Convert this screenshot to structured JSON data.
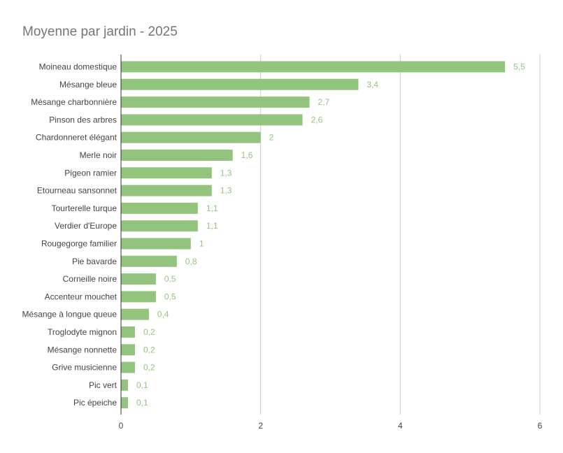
{
  "chart_data": {
    "type": "bar",
    "orientation": "horizontal",
    "title": "Moyenne par jardin - 2025",
    "xlabel": "",
    "ylabel": "",
    "categories": [
      "Moineau domestique",
      "Mésange bleue",
      "Mésange charbonnière",
      "Pinson des arbres",
      "Chardonneret élégant",
      "Merle noir",
      "Pigeon ramier",
      "Etourneau sansonnet",
      "Tourterelle turque",
      "Verdier d'Europe",
      "Rougegorge familier",
      "Pie bavarde",
      "Corneille noire",
      "Accenteur mouchet",
      "Mésange à longue queue",
      "Troglodyte mignon",
      "Mésange nonnette",
      "Grive musicienne",
      "Pic vert",
      "Pic épeiche"
    ],
    "values": [
      5.5,
      3.4,
      2.7,
      2.6,
      2,
      1.6,
      1.3,
      1.3,
      1.1,
      1.1,
      1,
      0.8,
      0.5,
      0.5,
      0.4,
      0.2,
      0.2,
      0.2,
      0.1,
      0.1
    ],
    "value_labels": [
      "5,5",
      "3,4",
      "2,7",
      "2,6",
      "2",
      "1,6",
      "1,3",
      "1,3",
      "1,1",
      "1,1",
      "1",
      "0,8",
      "0,5",
      "0,5",
      "0,4",
      "0,2",
      "0,2",
      "0,2",
      "0,1",
      "0,1"
    ],
    "xlim": [
      0,
      6
    ],
    "xticks": [
      0,
      2,
      4,
      6
    ],
    "xtick_labels": [
      "0",
      "2",
      "4",
      "6"
    ],
    "grid": true,
    "legend": "none",
    "colors": {
      "bar": "#93c47d",
      "value_label": "#93c47d",
      "title": "#757575",
      "text": "#444444",
      "grid": "#cccccc",
      "axis": "#333333"
    }
  }
}
